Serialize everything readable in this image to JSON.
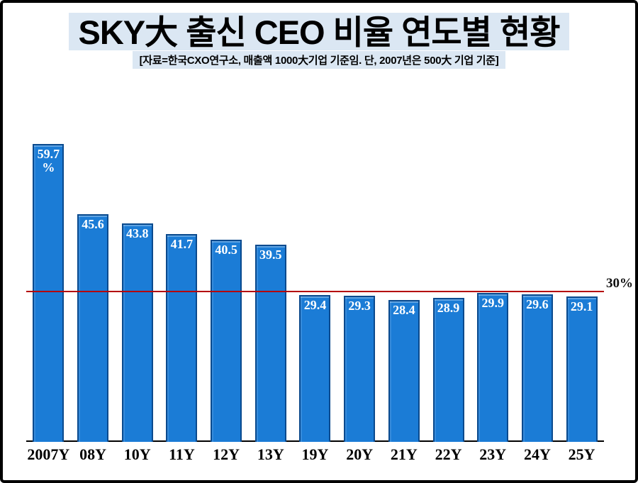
{
  "header": {
    "title": "SKY大 출신 CEO 비율 연도별 현황",
    "subtitle": "[자료=한국CXO연구소, 매출액 1000大기업  기준임. 단, 2007년은 500大 기업 기준]",
    "highlight_color": "#dbe7f3"
  },
  "chart_data": {
    "type": "bar",
    "title": "SKY大 출신 CEO 비율 연도별 현황",
    "source_note": "[자료=한국CXO연구소, 매출액 1000大기업  기준임. 단, 2007년은 500大 기업 기준]",
    "categories": [
      "2007Y",
      "08Y",
      "10Y",
      "11Y",
      "12Y",
      "13Y",
      "19Y",
      "20Y",
      "21Y",
      "22Y",
      "23Y",
      "24Y",
      "25Y"
    ],
    "values": [
      59.7,
      45.6,
      43.8,
      41.7,
      40.5,
      39.5,
      29.4,
      29.3,
      28.4,
      28.9,
      29.9,
      29.6,
      29.1
    ],
    "value_labels": [
      "59.7\n%",
      "45.6",
      "43.8",
      "41.7",
      "40.5",
      "39.5",
      "29.4",
      "29.3",
      "28.4",
      "28.9",
      "29.9",
      "29.6",
      "29.1"
    ],
    "unit": "%",
    "ylim": [
      0,
      61
    ],
    "grid": false,
    "legend": false,
    "reference_line": {
      "value": 30,
      "label": "30%",
      "color": "#b40000"
    },
    "colors": {
      "bar_fill": "#1b7cd6",
      "bar_border": "#0a4a8e",
      "bar_value_text": "#ffffff",
      "axis_line": "#000000",
      "x_label": "#000000"
    }
  }
}
